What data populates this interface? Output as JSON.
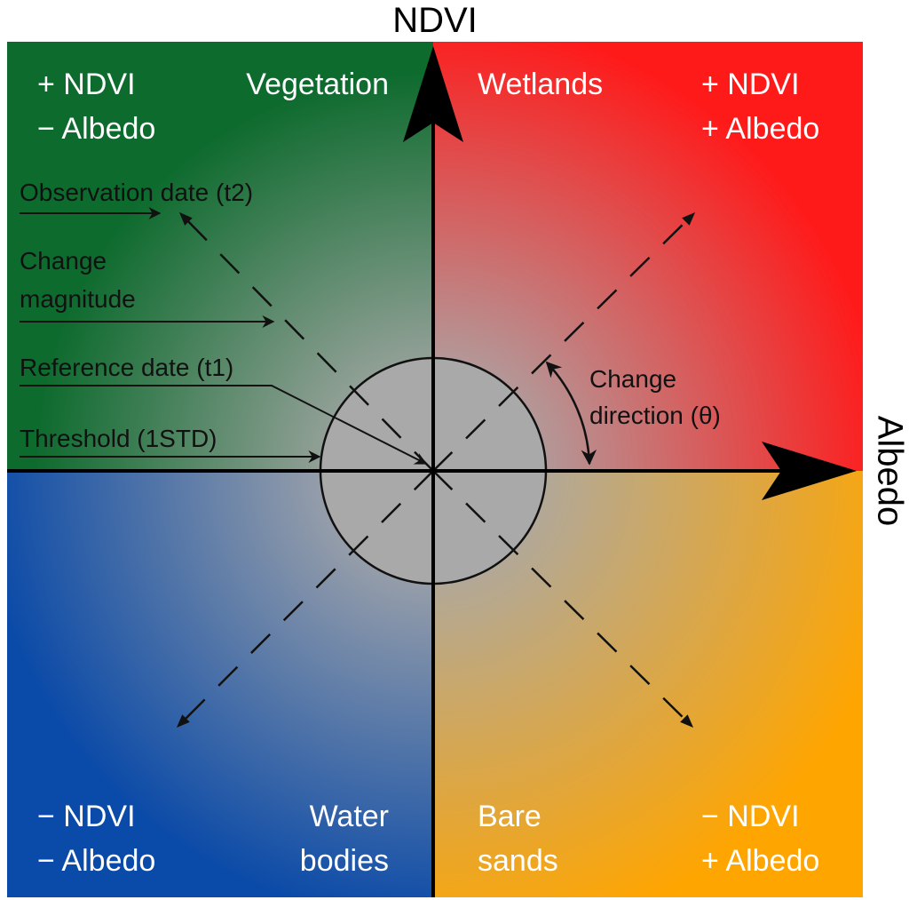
{
  "axes": {
    "y_title": "NDVI",
    "x_title": "Albedo"
  },
  "quadrants": {
    "top_left": {
      "signs": [
        "+ NDVI",
        "− Albedo"
      ],
      "class": "Vegetation",
      "color": "#0e6b2e"
    },
    "top_right": {
      "signs": [
        "+ NDVI",
        "+ Albedo"
      ],
      "class": "Wetlands",
      "color": "#ff1a1a"
    },
    "bottom_left": {
      "signs": [
        "− NDVI",
        "− Albedo"
      ],
      "class_lines": [
        "Water",
        "bodies"
      ],
      "color": "#0a4aa8"
    },
    "bottom_right": {
      "signs": [
        "− NDVI",
        "+ Albedo"
      ],
      "class_lines": [
        "Bare",
        "sands"
      ],
      "color": "#ffa500"
    }
  },
  "center_color": "#a9a9a9",
  "annotations": {
    "observation": "Observation date (t2)",
    "magnitude_lines": [
      "Change",
      "magnitude"
    ],
    "reference": "Reference date (t1)",
    "threshold": "Threshold (1STD)",
    "direction_lines": [
      "Change",
      "direction (θ)"
    ]
  }
}
